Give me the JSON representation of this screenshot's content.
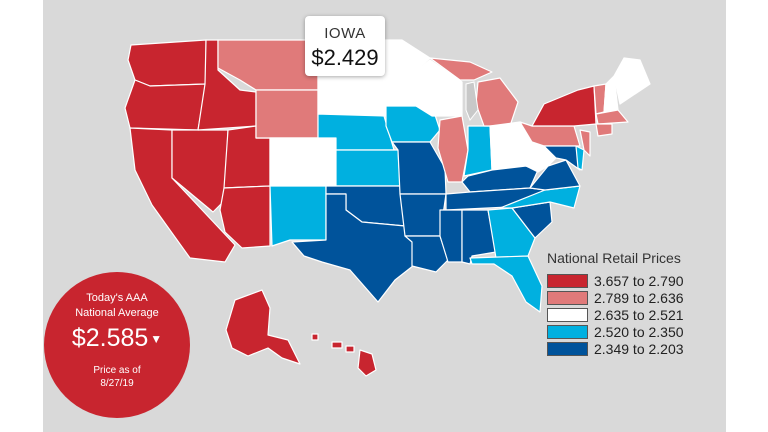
{
  "colors": {
    "bin1": "#c8252f",
    "bin2": "#e07a7a",
    "bin3": "#ffffff",
    "bin4": "#00b0e0",
    "bin5": "#00539b",
    "nodata": "#c8c8c8"
  },
  "tooltip": {
    "state": "IOWA",
    "price": "$2.429"
  },
  "legend": {
    "title": "National Retail Prices",
    "bins": [
      {
        "label": "3.657 to 2.790",
        "color": "#c8252f"
      },
      {
        "label": "2.789 to 2.636",
        "color": "#e07a7a"
      },
      {
        "label": "2.635 to 2.521",
        "color": "#ffffff"
      },
      {
        "label": "2.520 to 2.350",
        "color": "#00b0e0"
      },
      {
        "label": "2.349 to 2.203",
        "color": "#00539b"
      }
    ]
  },
  "badge": {
    "line1": "Today's AAA",
    "line2": "National Average",
    "price": "$2.585",
    "arrow": "▼",
    "line3": "Price as of",
    "line4": "8/27/19"
  },
  "states": [
    {
      "id": "WA",
      "bin": 1
    },
    {
      "id": "OR",
      "bin": 1
    },
    {
      "id": "CA",
      "bin": 1
    },
    {
      "id": "NV",
      "bin": 1
    },
    {
      "id": "ID",
      "bin": 1
    },
    {
      "id": "UT",
      "bin": 1
    },
    {
      "id": "AZ",
      "bin": 1
    },
    {
      "id": "AK",
      "bin": 1
    },
    {
      "id": "HI",
      "bin": 1
    },
    {
      "id": "NY",
      "bin": 1
    },
    {
      "id": "MT",
      "bin": 2
    },
    {
      "id": "WY",
      "bin": 2
    },
    {
      "id": "MI",
      "bin": 2
    },
    {
      "id": "IL",
      "bin": 2
    },
    {
      "id": "PA",
      "bin": 2
    },
    {
      "id": "VT",
      "bin": 2
    },
    {
      "id": "CT",
      "bin": 2
    },
    {
      "id": "NJ",
      "bin": 2
    },
    {
      "id": "MA",
      "bin": 2
    },
    {
      "id": "CO",
      "bin": 3
    },
    {
      "id": "ND",
      "bin": 3
    },
    {
      "id": "SD",
      "bin": 3
    },
    {
      "id": "MN",
      "bin": 3
    },
    {
      "id": "WI",
      "bin": 3
    },
    {
      "id": "OH",
      "bin": 3
    },
    {
      "id": "WV",
      "bin": 3
    },
    {
      "id": "ME",
      "bin": 3
    },
    {
      "id": "NH",
      "bin": 3
    },
    {
      "id": "NM",
      "bin": 4
    },
    {
      "id": "NE",
      "bin": 4
    },
    {
      "id": "KS",
      "bin": 4
    },
    {
      "id": "IA",
      "bin": 4
    },
    {
      "id": "IN",
      "bin": 4
    },
    {
      "id": "NC",
      "bin": 4
    },
    {
      "id": "GA",
      "bin": 4
    },
    {
      "id": "FL",
      "bin": 4
    },
    {
      "id": "DE",
      "bin": 4
    },
    {
      "id": "TX",
      "bin": 5
    },
    {
      "id": "OK",
      "bin": 5
    },
    {
      "id": "MO",
      "bin": 5
    },
    {
      "id": "AR",
      "bin": 5
    },
    {
      "id": "LA",
      "bin": 5
    },
    {
      "id": "MS",
      "bin": 5
    },
    {
      "id": "AL",
      "bin": 5
    },
    {
      "id": "TN",
      "bin": 5
    },
    {
      "id": "KY",
      "bin": 5
    },
    {
      "id": "SC",
      "bin": 5
    },
    {
      "id": "VA",
      "bin": 5
    },
    {
      "id": "MD",
      "bin": 5
    }
  ]
}
